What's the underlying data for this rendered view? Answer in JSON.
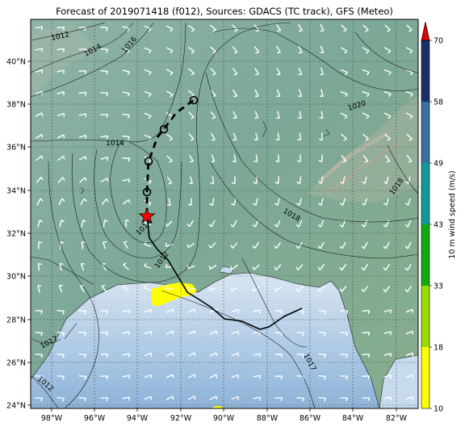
{
  "title": "Forecast of 2019071418 (f012), Sources: GDACS (TC track), GFS (Meteo)",
  "map": {
    "lon_ticks": [
      "98°W",
      "96°W",
      "94°W",
      "92°W",
      "90°W",
      "88°W",
      "86°W",
      "84°W",
      "82°W"
    ],
    "lat_ticks": [
      "40°N",
      "38°N",
      "36°N",
      "34°N",
      "32°N",
      "30°N",
      "28°N",
      "26°N",
      "24°N"
    ],
    "lon_range": [
      -99.2,
      -81.2
    ],
    "lat_range": [
      23.9,
      41.9
    ],
    "grid": true
  },
  "isobar_labels": [
    "1012",
    "1014",
    "1016",
    "1020",
    "1014",
    "1018",
    "1018",
    "1014",
    "1012",
    "1017",
    "1017",
    "1012"
  ],
  "storm": {
    "current_marker": "red-star",
    "current_position": {
      "lon": -93.5,
      "lat": 32.8
    },
    "forecast_positions": [
      {
        "lon": -93.5,
        "lat": 33.9
      },
      {
        "lon": -93.4,
        "lat": 35.3
      },
      {
        "lon": -92.8,
        "lat": 36.8
      },
      {
        "lon": -91.4,
        "lat": 38.2
      }
    ]
  },
  "colorbar": {
    "label": "10 m wind speed (m/s)",
    "ticks": [
      "10",
      "18",
      "33",
      "43",
      "49",
      "58",
      "70"
    ],
    "colors": [
      "#ffff00",
      "#99dd00",
      "#11aa11",
      "#119999",
      "#3a6f9e",
      "#1b2f66"
    ],
    "extend_color": "#e00000"
  }
}
